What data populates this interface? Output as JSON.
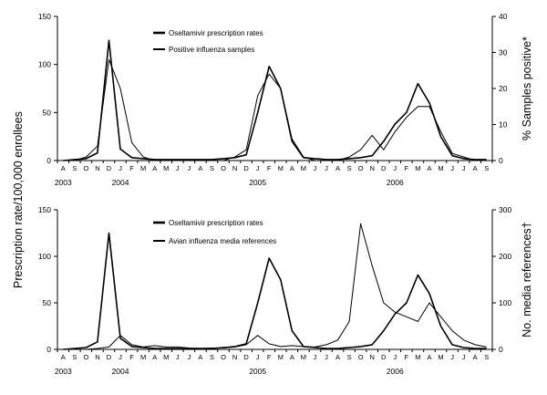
{
  "figure": {
    "ylabel_left": "Prescription rate/100,000 enrollees"
  },
  "chart_data": [
    {
      "type": "line",
      "xlabel": "",
      "x_months": [
        "A",
        "S",
        "O",
        "N",
        "D",
        "J",
        "F",
        "M",
        "A",
        "M",
        "J",
        "J",
        "A",
        "S",
        "O",
        "N",
        "D",
        "J",
        "F",
        "M",
        "A",
        "M",
        "J",
        "J",
        "A",
        "S",
        "O",
        "N",
        "D",
        "J",
        "F",
        "M",
        "A",
        "M",
        "J",
        "J",
        "A",
        "S"
      ],
      "years": [
        "2003",
        "2004",
        "2005",
        "2006"
      ],
      "ylabel_right": "% Samples positive*",
      "ylim_left": [
        0,
        150
      ],
      "ylim_right": [
        0,
        40
      ],
      "left_ticks": [
        "0",
        "50",
        "100",
        "150"
      ],
      "right_ticks": [
        "0",
        "10",
        "20",
        "30",
        "40"
      ],
      "legend": [
        "Oseltamivir prescription rates",
        "Positive influenza samples"
      ],
      "series": [
        {
          "name": "Oseltamivir prescription rates",
          "axis": "left",
          "stroke_width": 1.6,
          "values": [
            0,
            1,
            2,
            8,
            125,
            12,
            3,
            2,
            1,
            1,
            1,
            1,
            1,
            1,
            2,
            3,
            6,
            50,
            98,
            75,
            20,
            3,
            2,
            1,
            1,
            2,
            3,
            5,
            20,
            38,
            50,
            80,
            60,
            25,
            5,
            2,
            1,
            1
          ]
        },
        {
          "name": "Positive influenza samples",
          "axis": "right",
          "stroke_width": 1.0,
          "values": [
            0,
            0,
            1,
            4,
            28,
            20,
            5,
            1,
            0,
            0,
            0,
            0,
            0,
            0,
            0,
            1,
            3,
            18,
            24,
            20,
            6,
            1,
            0,
            0,
            0,
            1,
            3,
            7,
            3,
            8,
            12,
            15,
            15,
            8,
            2,
            1,
            0,
            0
          ]
        }
      ]
    },
    {
      "type": "line",
      "xlabel": "",
      "x_months": [
        "A",
        "S",
        "O",
        "N",
        "D",
        "J",
        "F",
        "M",
        "A",
        "M",
        "J",
        "J",
        "A",
        "S",
        "O",
        "N",
        "D",
        "J",
        "F",
        "M",
        "A",
        "M",
        "J",
        "J",
        "A",
        "S",
        "O",
        "N",
        "D",
        "J",
        "F",
        "M",
        "A",
        "M",
        "J",
        "J",
        "A",
        "S"
      ],
      "years": [
        "2003",
        "2004",
        "2005",
        "2006"
      ],
      "ylabel_right": "No. media references†",
      "ylim_left": [
        0,
        150
      ],
      "ylim_right": [
        0,
        300
      ],
      "left_ticks": [
        "0",
        "50",
        "100",
        "150"
      ],
      "right_ticks": [
        "0",
        "100",
        "200",
        "300"
      ],
      "legend": [
        "Oseltamivir prescription rates",
        "Avian influenza media references"
      ],
      "series": [
        {
          "name": "Oseltamivir prescription rates",
          "axis": "left",
          "stroke_width": 1.6,
          "values": [
            0,
            1,
            2,
            8,
            125,
            12,
            3,
            2,
            1,
            1,
            1,
            1,
            1,
            1,
            2,
            3,
            6,
            50,
            98,
            75,
            20,
            3,
            2,
            1,
            1,
            2,
            3,
            5,
            20,
            38,
            50,
            80,
            60,
            25,
            5,
            2,
            1,
            1
          ]
        },
        {
          "name": "Avian influenza media references",
          "axis": "right",
          "stroke_width": 1.0,
          "values": [
            0,
            0,
            0,
            2,
            5,
            30,
            10,
            5,
            8,
            5,
            5,
            3,
            2,
            3,
            3,
            5,
            10,
            30,
            12,
            6,
            8,
            6,
            5,
            10,
            20,
            60,
            270,
            180,
            100,
            80,
            70,
            60,
            100,
            70,
            40,
            20,
            10,
            5
          ]
        }
      ]
    }
  ]
}
